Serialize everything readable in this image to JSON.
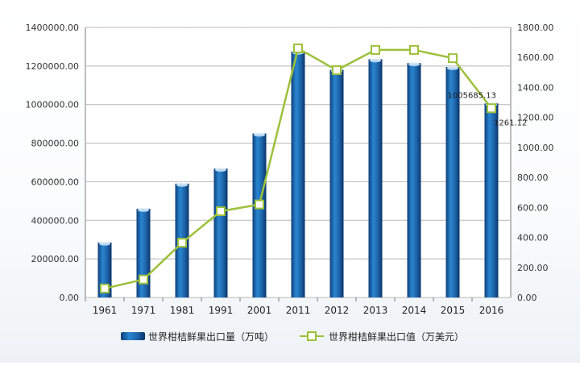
{
  "chart_data": {
    "type": "bar",
    "title": "",
    "categories": [
      "1961",
      "1971",
      "1981",
      "1991",
      "2001",
      "2011",
      "2012",
      "2013",
      "2014",
      "2015",
      "2016"
    ],
    "series": [
      {
        "name": "世界柑桔鲜果出口量（万吨）",
        "type": "bar",
        "axis": "left",
        "color": "#1f6fb8",
        "values": [
          285000,
          460000,
          590000,
          668000,
          850000,
          1275000,
          1180000,
          1235000,
          1215000,
          1195000,
          1005685.13
        ]
      },
      {
        "name": "世界柑桔鲜果出口值（万美元）",
        "type": "line",
        "axis": "right",
        "color": "#9dc03a",
        "values": [
          60,
          120,
          365,
          575,
          620,
          1660,
          1515,
          1650,
          1650,
          1595,
          1261.12
        ]
      }
    ],
    "data_labels": [
      {
        "series": 0,
        "index": 10,
        "text": "1005685.13"
      },
      {
        "series": 1,
        "index": 10,
        "text": "1261.12"
      }
    ],
    "y_left": {
      "min": 0,
      "max": 1400000,
      "ticks": [
        "0.00",
        "200000.00",
        "400000.00",
        "600000.00",
        "800000.00",
        "1000000.00",
        "1200000.00",
        "1400000.00"
      ]
    },
    "y_right": {
      "min": 0,
      "max": 1800,
      "ticks": [
        "0.00",
        "200.00",
        "400.00",
        "600.00",
        "800.00",
        "1000.00",
        "1200.00",
        "1400.00",
        "1600.00",
        "1800.00"
      ]
    },
    "grid": true,
    "legend_position": "bottom"
  }
}
